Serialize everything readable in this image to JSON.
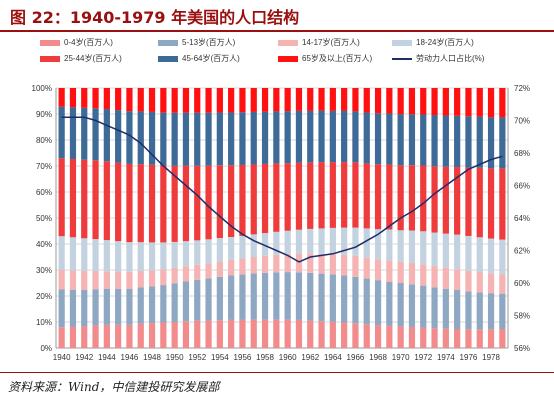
{
  "title": "图 22：1940-1979 年美国的人口结构",
  "source": "资料来源：Wind，中信建投研究发展部",
  "colors": {
    "title": "#9a0f0f",
    "s0_4": "#f28b8b",
    "s5_13": "#8ea8c3",
    "s14_17": "#f6b3b3",
    "s18_24": "#c3d2e0",
    "s25_44": "#ef3b3b",
    "s45_64": "#3d6a97",
    "s65": "#ff1111",
    "line": "#1f2d6b",
    "grid": "#d9d9d9"
  },
  "chart_data": {
    "type": "bar",
    "stacked": true,
    "normalized": true,
    "years": [
      1940,
      1941,
      1942,
      1943,
      1944,
      1945,
      1946,
      1947,
      1948,
      1949,
      1950,
      1951,
      1952,
      1953,
      1954,
      1955,
      1956,
      1957,
      1958,
      1959,
      1960,
      1961,
      1962,
      1963,
      1964,
      1965,
      1966,
      1967,
      1968,
      1969,
      1970,
      1971,
      1972,
      1973,
      1974,
      1975,
      1976,
      1977,
      1978,
      1979
    ],
    "x_tick_labels": [
      "1940",
      "1942",
      "1944",
      "1946",
      "1948",
      "1950",
      "1952",
      "1954",
      "1956",
      "1958",
      "1960",
      "1962",
      "1964",
      "1966",
      "1968",
      "1970",
      "1972",
      "1974",
      "1976",
      "1978"
    ],
    "y_left_ticks": [
      "0%",
      "10%",
      "20%",
      "30%",
      "40%",
      "50%",
      "60%",
      "70%",
      "80%",
      "90%",
      "100%"
    ],
    "y_left_range": [
      0,
      100
    ],
    "y_right_ticks": [
      "56%",
      "58%",
      "60%",
      "62%",
      "64%",
      "66%",
      "68%",
      "70%",
      "72%"
    ],
    "y_right_range": [
      56,
      72
    ],
    "legend": [
      {
        "label": "0-4岁(百万人)",
        "key": "s0_4",
        "kind": "bar"
      },
      {
        "label": "5-13岁(百万人)",
        "key": "s5_13",
        "kind": "bar"
      },
      {
        "label": "14-17岁(百万人)",
        "key": "s14_17",
        "kind": "bar"
      },
      {
        "label": "18-24岁(百万人)",
        "key": "s18_24",
        "kind": "bar"
      },
      {
        "label": "25-44岁(百万人)",
        "key": "s25_44",
        "kind": "bar"
      },
      {
        "label": "45-64岁(百万人)",
        "key": "s45_64",
        "kind": "bar"
      },
      {
        "label": "65岁及以上(百万人)",
        "key": "s65",
        "kind": "bar"
      },
      {
        "label": "劳动力人口占比(%)",
        "key": "line",
        "kind": "line"
      }
    ],
    "series": [
      {
        "name": "0-4岁(百万人)",
        "key": "s0_4",
        "values": [
          8.0,
          8.1,
          8.3,
          8.6,
          8.9,
          8.9,
          8.9,
          9.4,
          9.6,
          9.8,
          10.0,
          10.3,
          10.5,
          10.6,
          10.7,
          10.8,
          10.8,
          10.9,
          10.9,
          10.9,
          10.9,
          10.8,
          10.6,
          10.3,
          10.1,
          9.8,
          9.5,
          9.1,
          8.8,
          8.5,
          8.3,
          8.1,
          7.9,
          7.6,
          7.4,
          7.3,
          7.2,
          7.2,
          7.2,
          7.3
        ]
      },
      {
        "name": "5-13岁(百万人)",
        "key": "s5_13",
        "values": [
          14.5,
          14.3,
          14.1,
          14.0,
          13.8,
          13.8,
          13.9,
          13.9,
          14.1,
          14.4,
          14.9,
          15.3,
          15.7,
          16.2,
          16.7,
          17.1,
          17.5,
          17.8,
          18.0,
          18.2,
          18.3,
          18.3,
          18.3,
          18.3,
          18.2,
          18.1,
          17.9,
          17.6,
          17.3,
          17.0,
          16.7,
          16.4,
          16.1,
          15.7,
          15.4,
          15.0,
          14.6,
          14.2,
          13.9,
          13.6
        ]
      },
      {
        "name": "14-17岁(百万人)",
        "key": "s14_17",
        "values": [
          7.5,
          7.4,
          7.2,
          7.0,
          6.8,
          6.7,
          6.5,
          6.3,
          6.1,
          6.0,
          5.9,
          5.8,
          5.8,
          5.8,
          5.9,
          6.0,
          6.1,
          6.3,
          6.6,
          6.8,
          7.0,
          7.2,
          7.4,
          7.6,
          7.8,
          7.9,
          8.0,
          8.0,
          8.0,
          8.1,
          8.1,
          8.2,
          8.2,
          8.2,
          8.1,
          8.0,
          7.9,
          7.8,
          7.6,
          7.4
        ]
      },
      {
        "name": "18-24岁(百万人)",
        "key": "s18_24",
        "values": [
          13.0,
          12.8,
          12.6,
          12.3,
          12.0,
          11.7,
          11.4,
          11.1,
          10.8,
          10.4,
          10.0,
          9.7,
          9.4,
          9.2,
          9.0,
          8.8,
          8.7,
          8.7,
          8.7,
          8.8,
          8.9,
          9.2,
          9.5,
          9.8,
          10.1,
          10.5,
          10.9,
          11.3,
          11.6,
          12.0,
          12.2,
          12.5,
          12.7,
          12.9,
          13.1,
          13.3,
          13.4,
          13.4,
          13.4,
          13.4
        ]
      },
      {
        "name": "25-44岁(百万人)",
        "key": "s25_44",
        "values": [
          30.0,
          30.1,
          30.2,
          30.3,
          30.3,
          30.2,
          30.1,
          30.0,
          29.9,
          29.6,
          29.3,
          29.0,
          28.7,
          28.3,
          28.0,
          27.6,
          27.3,
          26.9,
          26.6,
          26.3,
          26.0,
          25.8,
          25.6,
          25.5,
          25.3,
          25.2,
          25.1,
          25.0,
          25.0,
          25.0,
          25.0,
          25.1,
          25.3,
          25.5,
          25.7,
          26.0,
          26.3,
          26.7,
          27.0,
          27.4
        ]
      },
      {
        "name": "45-64岁(百万人)",
        "key": "s45_64",
        "values": [
          19.8,
          19.9,
          20.0,
          20.0,
          20.1,
          20.2,
          20.3,
          20.3,
          20.3,
          20.3,
          20.4,
          20.4,
          20.4,
          20.4,
          20.3,
          20.3,
          20.3,
          20.2,
          20.1,
          20.0,
          20.0,
          19.9,
          19.8,
          19.8,
          19.7,
          19.7,
          19.6,
          19.6,
          19.6,
          19.6,
          19.6,
          19.6,
          19.6,
          19.7,
          19.7,
          19.7,
          19.7,
          19.7,
          19.6,
          19.6
        ]
      },
      {
        "name": "65岁及以上(百万人)",
        "key": "s65",
        "values": [
          7.2,
          7.4,
          7.6,
          7.8,
          8.1,
          8.5,
          8.9,
          9.0,
          9.2,
          9.5,
          9.5,
          9.5,
          9.5,
          9.5,
          9.4,
          9.4,
          9.3,
          9.2,
          9.1,
          9.0,
          8.9,
          8.8,
          8.8,
          8.7,
          8.8,
          8.8,
          9.0,
          9.4,
          9.7,
          9.8,
          10.1,
          10.1,
          10.2,
          10.4,
          10.6,
          10.7,
          10.9,
          11.0,
          11.3,
          11.3
        ]
      },
      {
        "name": "劳动力人口占比(%)",
        "key": "line",
        "axis": "right",
        "values": [
          70.2,
          70.2,
          70.2,
          70.0,
          69.7,
          69.4,
          69.1,
          68.6,
          67.9,
          67.2,
          66.6,
          66.0,
          65.4,
          64.7,
          64.1,
          63.5,
          63.0,
          62.6,
          62.3,
          62.0,
          61.7,
          61.3,
          61.6,
          61.7,
          61.8,
          62.0,
          62.2,
          62.6,
          63.0,
          63.5,
          64.0,
          64.4,
          64.9,
          65.5,
          66.0,
          66.5,
          67.0,
          67.3,
          67.6,
          67.8
        ]
      }
    ]
  }
}
